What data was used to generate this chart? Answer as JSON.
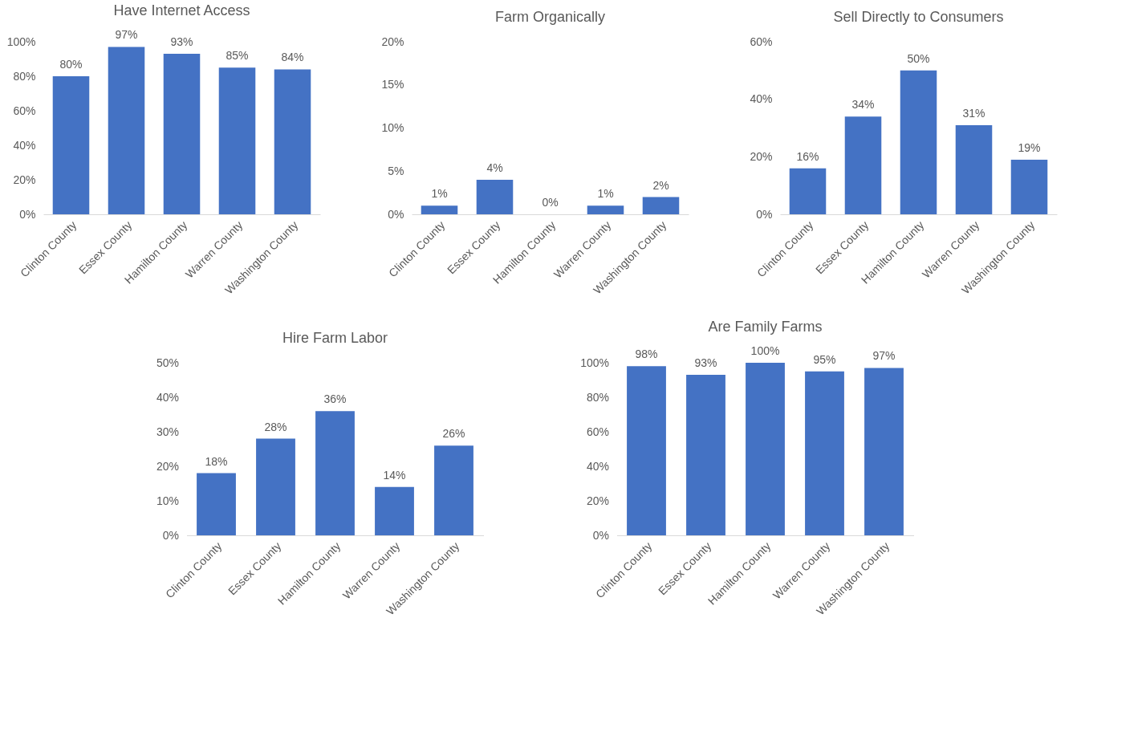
{
  "chart_data": [
    {
      "type": "bar",
      "title": "Have Internet Access",
      "categories": [
        "Clinton County",
        "Essex County",
        "Hamilton County",
        "Warren County",
        "Washington County"
      ],
      "values": [
        80,
        97,
        93,
        85,
        84
      ],
      "value_labels": [
        "80%",
        "97%",
        "93%",
        "85%",
        "84%"
      ],
      "color": "#4472c4",
      "ylim": [
        0,
        100
      ],
      "yticks": [
        {
          "value": 0,
          "label": "0%"
        },
        {
          "value": 20,
          "label": "20%"
        },
        {
          "value": 40,
          "label": "40%"
        },
        {
          "value": 60,
          "label": "60%"
        },
        {
          "value": 80,
          "label": "80%"
        },
        {
          "value": 100,
          "label": "100%"
        }
      ],
      "grid": false
    },
    {
      "type": "bar",
      "title": "Farm Organically",
      "categories": [
        "Clinton County",
        "Essex County",
        "Hamilton County",
        "Warren County",
        "Washington County"
      ],
      "values": [
        1,
        4,
        0,
        1,
        2
      ],
      "value_labels": [
        "1%",
        "4%",
        "0%",
        "1%",
        "2%"
      ],
      "color": "#4472c4",
      "ylim": [
        0,
        20
      ],
      "yticks": [
        {
          "value": 0,
          "label": "0%"
        },
        {
          "value": 5,
          "label": "5%"
        },
        {
          "value": 10,
          "label": "10%"
        },
        {
          "value": 15,
          "label": "15%"
        },
        {
          "value": 20,
          "label": "20%"
        }
      ],
      "grid": false
    },
    {
      "type": "bar",
      "title": "Sell Directly to Consumers",
      "categories": [
        "Clinton County",
        "Essex County",
        "Hamilton County",
        "Warren County",
        "Washington County"
      ],
      "values": [
        16,
        34,
        50,
        31,
        19
      ],
      "value_labels": [
        "16%",
        "34%",
        "50%",
        "31%",
        "19%"
      ],
      "color": "#4472c4",
      "ylim": [
        0,
        60
      ],
      "yticks": [
        {
          "value": 0,
          "label": "0%"
        },
        {
          "value": 20,
          "label": "20%"
        },
        {
          "value": 40,
          "label": "40%"
        },
        {
          "value": 60,
          "label": "60%"
        }
      ],
      "grid": false
    },
    {
      "type": "bar",
      "title": "Hire Farm Labor",
      "categories": [
        "Clinton County",
        "Essex County",
        "Hamilton County",
        "Warren County",
        "Washington County"
      ],
      "values": [
        18,
        28,
        36,
        14,
        26
      ],
      "value_labels": [
        "18%",
        "28%",
        "36%",
        "14%",
        "26%"
      ],
      "color": "#4472c4",
      "ylim": [
        0,
        50
      ],
      "yticks": [
        {
          "value": 0,
          "label": "0%"
        },
        {
          "value": 10,
          "label": "10%"
        },
        {
          "value": 20,
          "label": "20%"
        },
        {
          "value": 30,
          "label": "30%"
        },
        {
          "value": 40,
          "label": "40%"
        },
        {
          "value": 50,
          "label": "50%"
        }
      ],
      "grid": false
    },
    {
      "type": "bar",
      "title": "Are Family Farms",
      "categories": [
        "Clinton County",
        "Essex County",
        "Hamilton County",
        "Warren County",
        "Washington County"
      ],
      "values": [
        98,
        93,
        100,
        95,
        97
      ],
      "value_labels": [
        "98%",
        "93%",
        "100%",
        "95%",
        "97%"
      ],
      "color": "#4472c4",
      "ylim": [
        0,
        100
      ],
      "yticks": [
        {
          "value": 0,
          "label": "0%"
        },
        {
          "value": 20,
          "label": "20%"
        },
        {
          "value": 40,
          "label": "40%"
        },
        {
          "value": 60,
          "label": "60%"
        },
        {
          "value": 80,
          "label": "80%"
        },
        {
          "value": 100,
          "label": "100%"
        }
      ],
      "grid": false
    }
  ]
}
